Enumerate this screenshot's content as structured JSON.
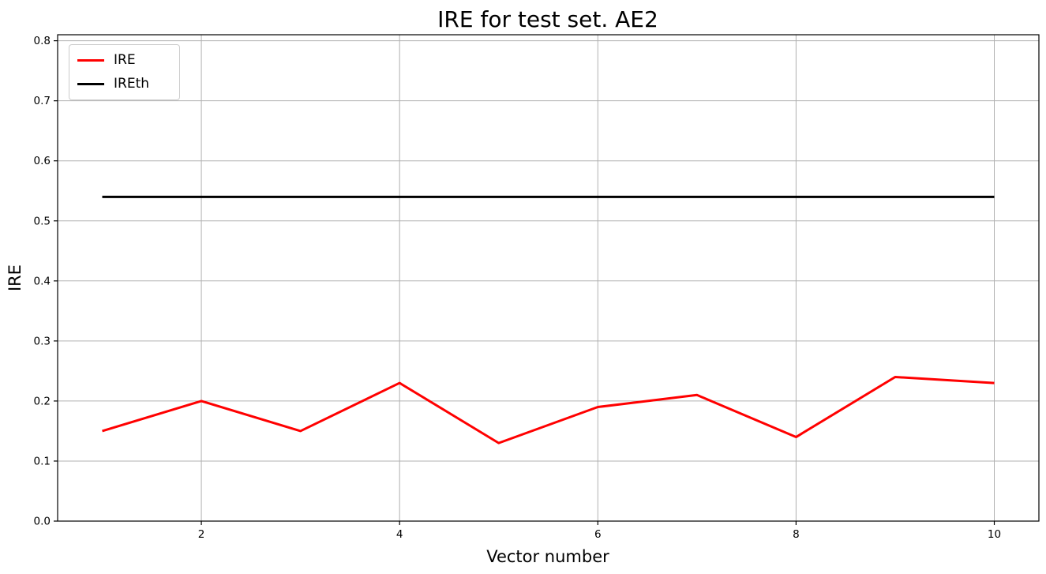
{
  "figure": {
    "title": "IRE for test set. AE2",
    "xlabel": "Vector number",
    "ylabel": "IRE",
    "background": "#ffffff"
  },
  "legend": {
    "position": "upper-left",
    "entries": [
      {
        "label": "IRE",
        "color": "#ff0000"
      },
      {
        "label": "IREth",
        "color": "#000000"
      }
    ]
  },
  "chart_data": {
    "type": "line",
    "title": "IRE for test set. AE2",
    "xlabel": "Vector number",
    "ylabel": "IRE",
    "x": [
      1,
      2,
      3,
      4,
      5,
      6,
      7,
      8,
      9,
      10
    ],
    "series": [
      {
        "name": "IRE",
        "color": "#ff0000",
        "line_width": 3,
        "values": [
          0.15,
          0.2,
          0.15,
          0.23,
          0.13,
          0.19,
          0.21,
          0.14,
          0.24,
          0.23
        ]
      },
      {
        "name": "IREth",
        "color": "#000000",
        "line_width": 3,
        "values": [
          0.54,
          0.54,
          0.54,
          0.54,
          0.54,
          0.54,
          0.54,
          0.54,
          0.54,
          0.54
        ]
      }
    ],
    "xlim": [
      0.55,
      10.45
    ],
    "ylim": [
      0,
      0.81
    ],
    "xtick_labels": [
      "2",
      "4",
      "6",
      "8",
      "10"
    ],
    "xtick_values": [
      2,
      4,
      6,
      8,
      10
    ],
    "ytick_labels": [
      "0.0",
      "0.1",
      "0.2",
      "0.3",
      "0.4",
      "0.5",
      "0.6",
      "0.7",
      "0.8"
    ],
    "ytick_values": [
      0.0,
      0.1,
      0.2,
      0.3,
      0.4,
      0.5,
      0.6,
      0.7,
      0.8
    ],
    "grid": true,
    "grid_color": "#b0b0b0",
    "spine_color": "#000000",
    "legend_position": "upper-left"
  }
}
